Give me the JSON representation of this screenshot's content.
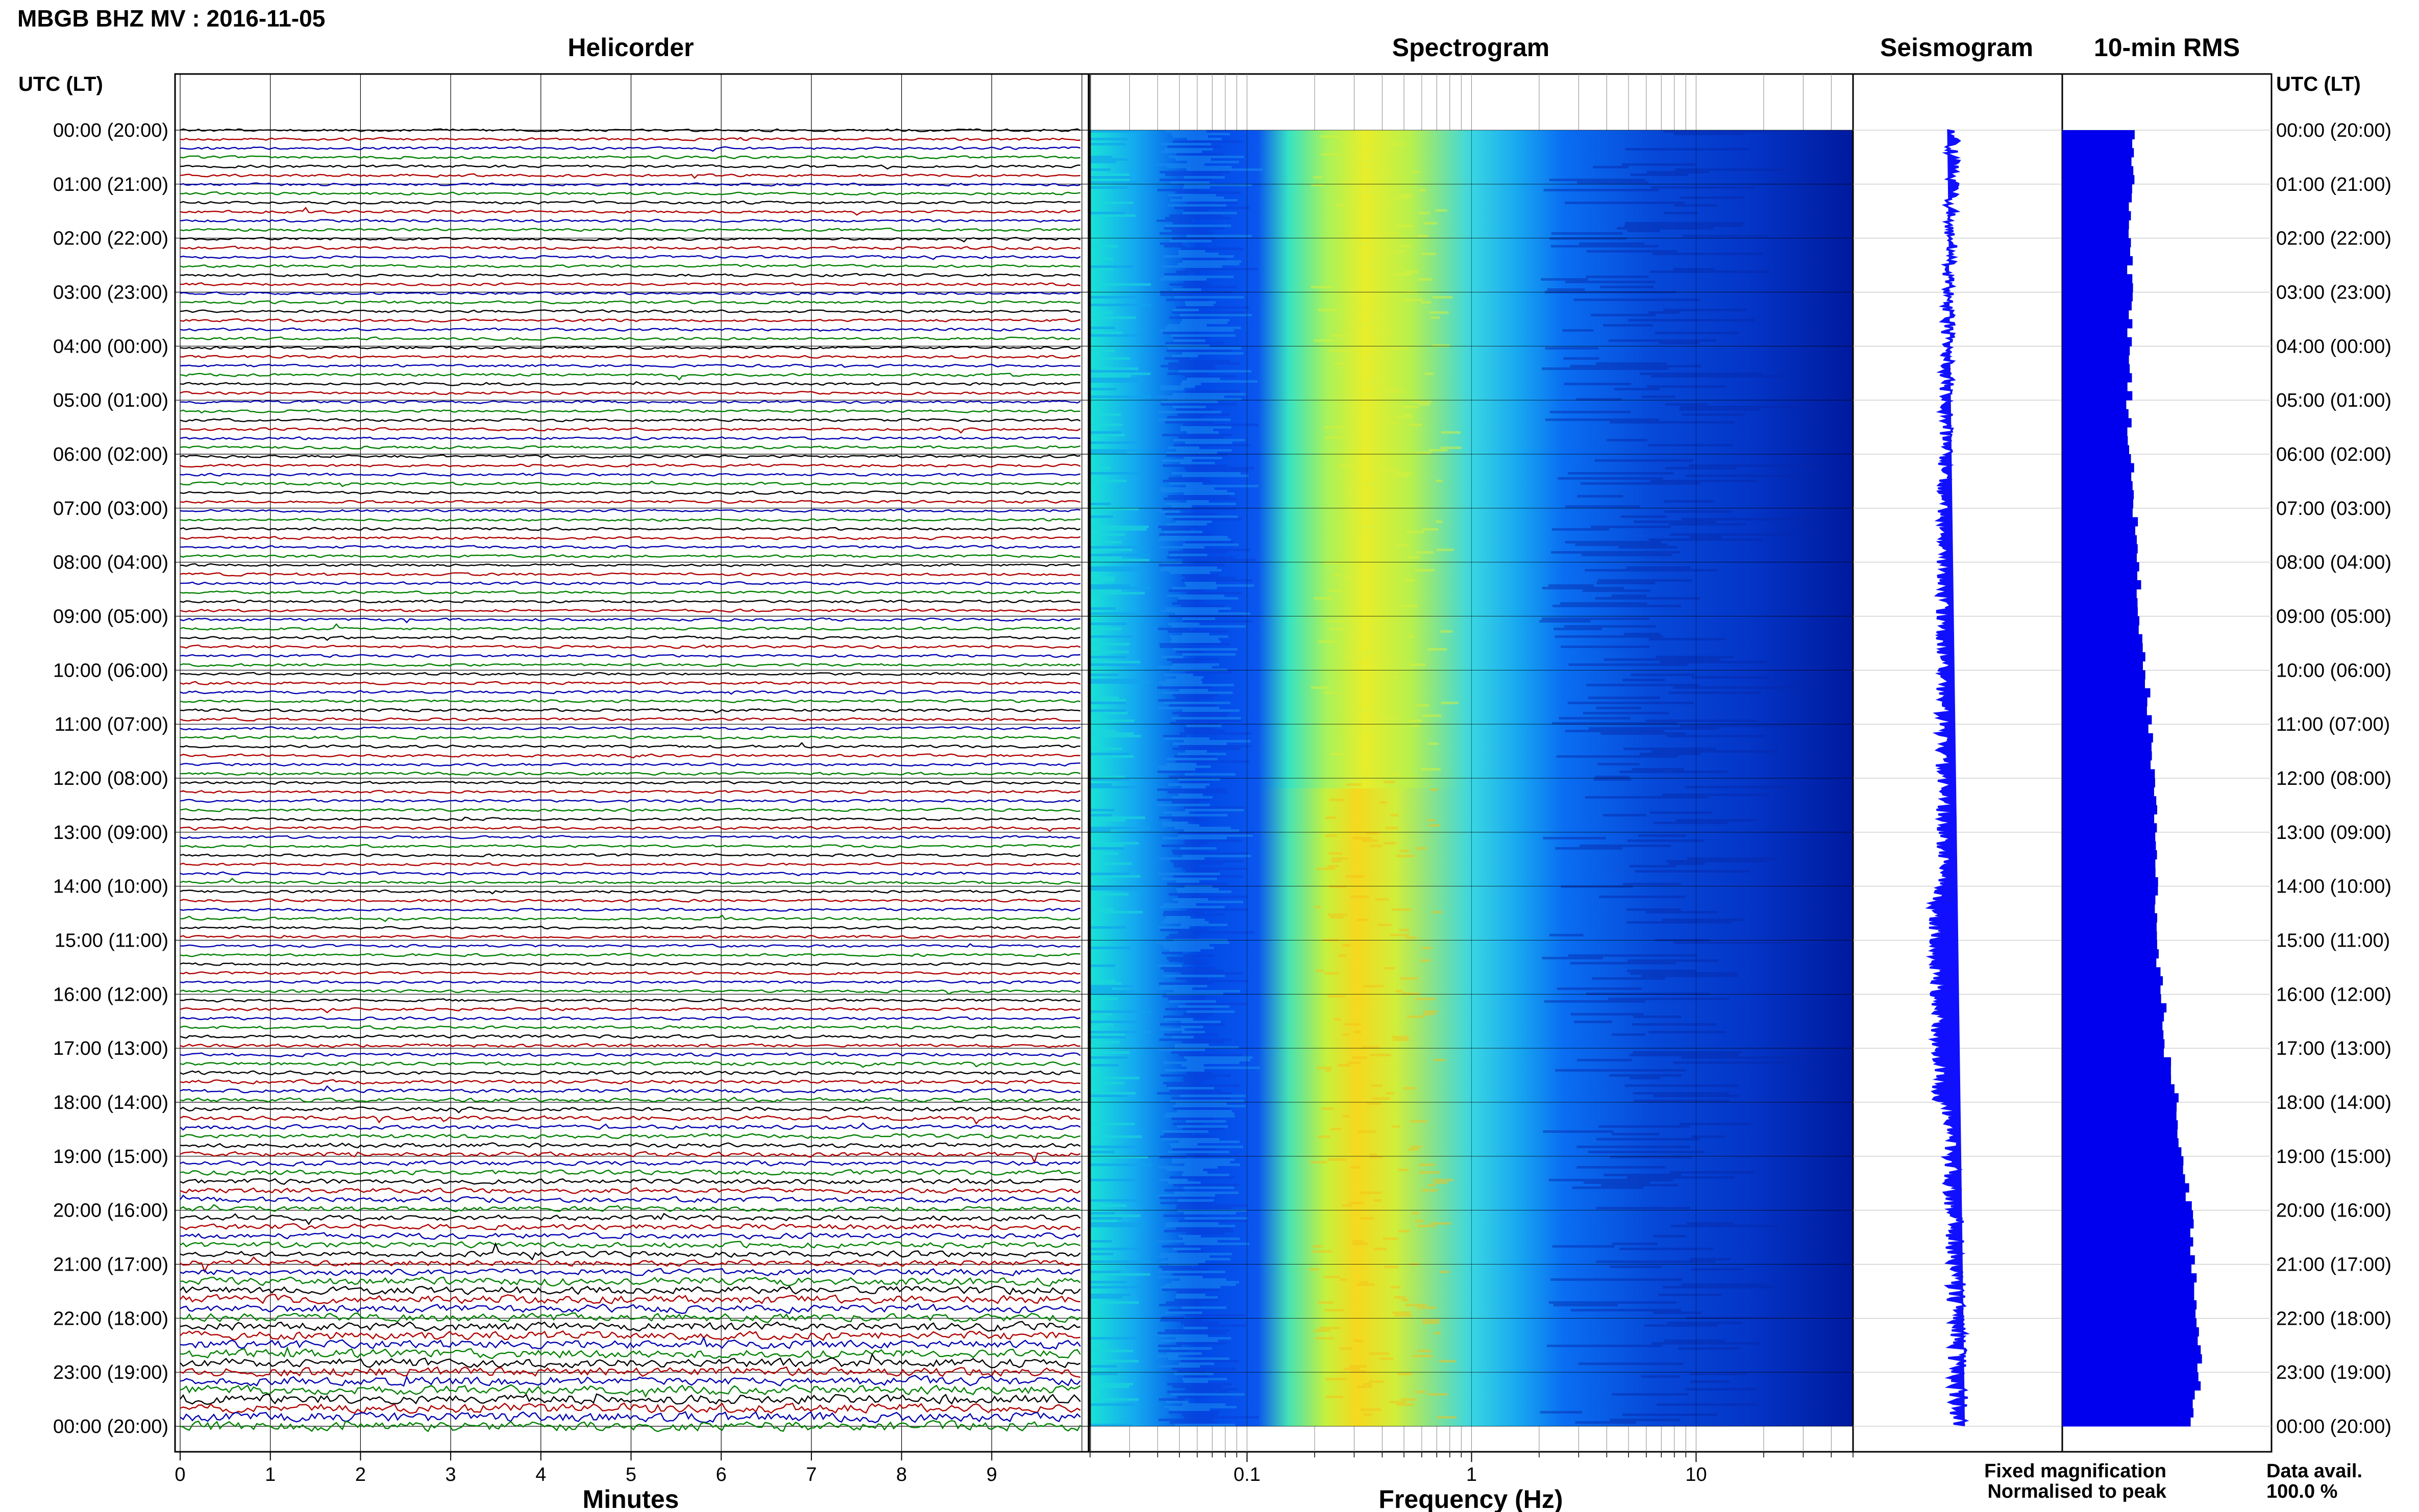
{
  "header": {
    "title": "MBGB BHZ MV : 2016-11-05",
    "time_axis_label_left": "UTC (LT)",
    "time_axis_label_right": "UTC (LT)"
  },
  "panels": {
    "helicorder": "Helicorder",
    "spectrogram": "Spectrogram",
    "seismogram": "Seismogram",
    "rms": "10-min RMS"
  },
  "axes": {
    "minutes_label": "Minutes",
    "frequency_label": "Frequency (Hz)",
    "minute_ticks": [
      "0",
      "1",
      "2",
      "3",
      "4",
      "5",
      "6",
      "7",
      "8",
      "9"
    ],
    "frequency_ticks": [
      "0.1",
      "1",
      "10"
    ],
    "time_labels": [
      "00:00 (20:00)",
      "01:00 (21:00)",
      "02:00 (22:00)",
      "03:00 (23:00)",
      "04:00 (00:00)",
      "05:00 (01:00)",
      "06:00 (02:00)",
      "07:00 (03:00)",
      "08:00 (04:00)",
      "09:00 (05:00)",
      "10:00 (06:00)",
      "11:00 (07:00)",
      "12:00 (08:00)",
      "13:00 (09:00)",
      "14:00 (10:00)",
      "15:00 (11:00)",
      "16:00 (12:00)",
      "17:00 (13:00)",
      "18:00 (14:00)",
      "19:00 (15:00)",
      "20:00 (16:00)",
      "21:00 (17:00)",
      "22:00 (18:00)",
      "23:00 (19:00)",
      "00:00 (20:00)"
    ]
  },
  "legend": {
    "fixed": "Fixed magnification",
    "normalised": "Normalised to peak",
    "data_avail_label": "Data avail.",
    "data_avail_value": "100.0 %",
    "fixed_color": "#0000ff",
    "normalised_color": "#ff0000"
  },
  "colors": {
    "trace_cycle": [
      "#000000",
      "#b00000",
      "#0000b0",
      "#008000"
    ],
    "seismogram": "#1010ff",
    "rms_bars": "#0000ee",
    "spectrogram_colormap": "jet"
  },
  "chart_data": {
    "type": "heatmap",
    "helicorder": {
      "x_range_minutes": [
        0,
        10
      ],
      "lines_per_hour": 6,
      "hours": 24
    },
    "spectrogram": {
      "x_scale": "log",
      "x_range_hz": [
        0.02,
        50
      ],
      "peak_frequency_hz": 0.33
    },
    "rms": {
      "interval_minutes": 10,
      "units": "relative",
      "hourly_level_relative": [
        0.34,
        0.33,
        0.32,
        0.33,
        0.32,
        0.32,
        0.33,
        0.35,
        0.36,
        0.37,
        0.4,
        0.42,
        0.44,
        0.44,
        0.45,
        0.44,
        0.48,
        0.5,
        0.55,
        0.58,
        0.61,
        0.63,
        0.65,
        0.66,
        0.6
      ]
    }
  }
}
